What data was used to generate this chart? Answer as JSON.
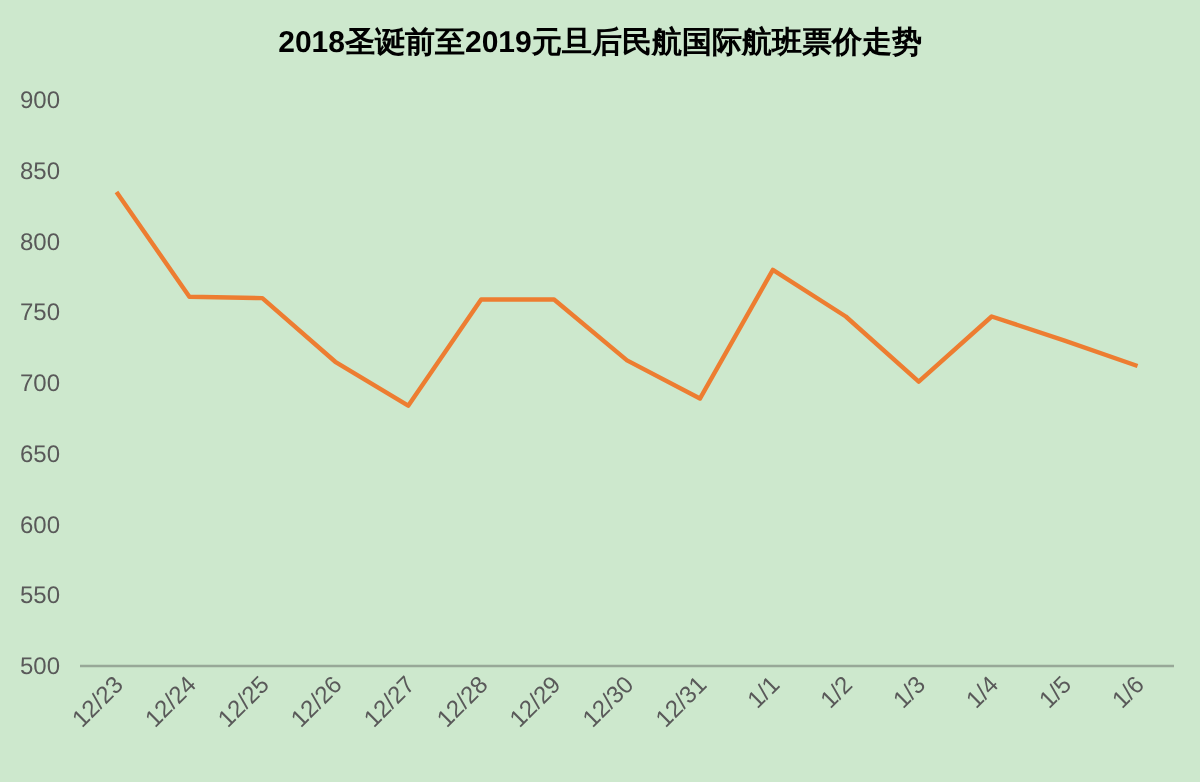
{
  "chart_data": {
    "type": "line",
    "title": "2018圣诞前至2019元旦后民航国际航班票价走势",
    "categories": [
      "12/23",
      "12/24",
      "12/25",
      "12/26",
      "12/27",
      "12/28",
      "12/29",
      "12/30",
      "12/31",
      "1/1",
      "1/2",
      "1/3",
      "1/4",
      "1/5",
      "1/6"
    ],
    "values": [
      835,
      761,
      760,
      715,
      684,
      759,
      759,
      716,
      689,
      780,
      747,
      701,
      747,
      730,
      712
    ],
    "color": "#ed7d31",
    "ylim": [
      500,
      900
    ],
    "yticks": [
      500,
      550,
      600,
      650,
      700,
      750,
      800,
      850,
      900
    ]
  }
}
